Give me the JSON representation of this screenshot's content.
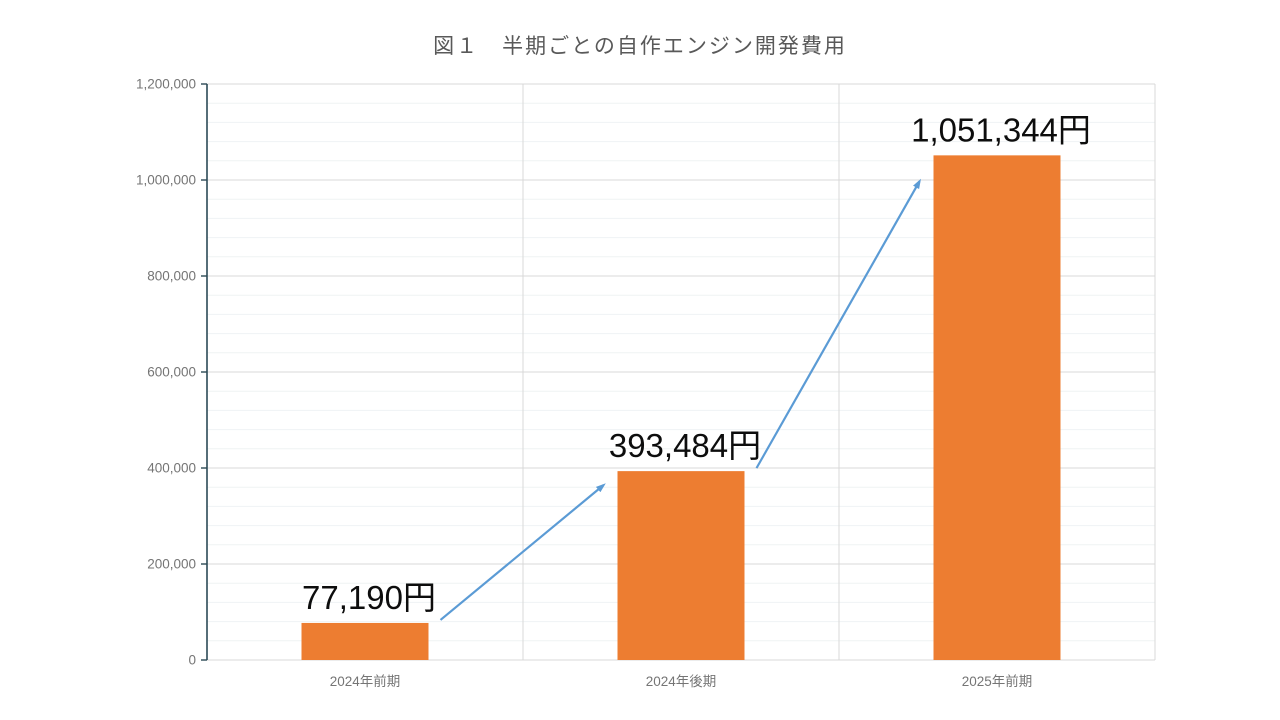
{
  "page": {
    "background": "#FFFFFF"
  },
  "chart_data": {
    "type": "bar",
    "title": "図１　半期ごとの自作エンジン開発費用",
    "categories": [
      "2024年前期",
      "2024年後期",
      "2025年前期"
    ],
    "values": [
      77190,
      393484,
      1051344
    ],
    "data_labels": [
      "77,190円",
      "393,484円",
      "1,051,344円"
    ],
    "unit": "円",
    "xlabel": "",
    "ylabel": "",
    "ylim": [
      0,
      1200000
    ],
    "y_major_unit": 200000,
    "y_minor_unit": 40000,
    "y_tick_labels": [
      "0",
      "200,000",
      "400,000",
      "600,000",
      "800,000",
      "1,000,000",
      "1,200,000"
    ],
    "grid": {
      "horizontal_major": true,
      "horizontal_minor": true,
      "vertical_category_separators": true
    },
    "legend": "none",
    "annotations": [
      {
        "type": "growth-arrow",
        "from_bar": 0,
        "to_bar": 1
      },
      {
        "type": "growth-arrow",
        "from_bar": 1,
        "to_bar": 2
      }
    ],
    "colors": {
      "bar_fill": "#ED7D31",
      "arrow": "#5B9BD5",
      "title_text": "#595959",
      "axis_text": "#757575",
      "data_label_text": "#0D0D0D",
      "axis_line": "#2C4A56",
      "major_gridline": "#D9D9D9",
      "minor_gridline": "#EFF3F4"
    }
  }
}
